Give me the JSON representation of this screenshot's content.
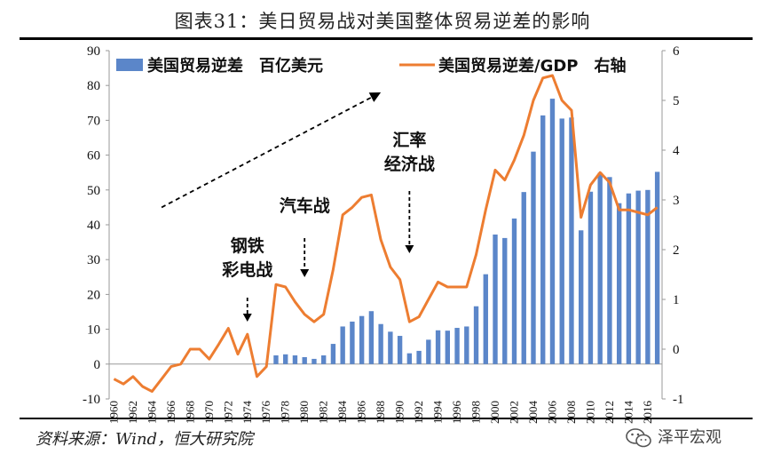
{
  "title": "图表31：美日贸易战对美国整体贸易逆差的影响",
  "source": "资料来源：Wind，恒大研究院",
  "watermark": "泽平宏观",
  "chart_data": {
    "type": "bar+line",
    "years": [
      1960,
      1961,
      1962,
      1963,
      1964,
      1965,
      1966,
      1967,
      1968,
      1969,
      1970,
      1971,
      1972,
      1973,
      1974,
      1975,
      1976,
      1977,
      1978,
      1979,
      1980,
      1981,
      1982,
      1983,
      1984,
      1985,
      1986,
      1987,
      1988,
      1989,
      1990,
      1991,
      1992,
      1993,
      1994,
      1995,
      1996,
      1997,
      1998,
      1999,
      2000,
      2001,
      2002,
      2003,
      2004,
      2005,
      2006,
      2007,
      2008,
      2009,
      2010,
      2011,
      2012,
      2013,
      2014,
      2015,
      2016,
      2017
    ],
    "x_tick_labels": [
      "1960",
      "1962",
      "1964",
      "1966",
      "1968",
      "1970",
      "1972",
      "1974",
      "1976",
      "1978",
      "1980",
      "1982",
      "1984",
      "1986",
      "1988",
      "1990",
      "1992",
      "1994",
      "1996",
      "1998",
      "2000",
      "2002",
      "2004",
      "2006",
      "2008",
      "2010",
      "2012",
      "2014",
      "2016"
    ],
    "series": [
      {
        "name": "美国贸易逆差　百亿美元",
        "type": "bar",
        "axis": "left",
        "color": "#5b86c9",
        "values": [
          0,
          0,
          0,
          0,
          0,
          0,
          0,
          0,
          0,
          0,
          0,
          0,
          0,
          0,
          0,
          -0.2,
          0,
          2.5,
          2.8,
          2.5,
          2.0,
          1.5,
          2.5,
          5.8,
          10.8,
          12.2,
          13.8,
          15.2,
          11.5,
          9.3,
          8.1,
          3.1,
          3.8,
          7.0,
          9.7,
          9.6,
          10.4,
          10.8,
          16.6,
          25.8,
          37.2,
          36.2,
          41.8,
          49.4,
          61.0,
          71.4,
          76.2,
          70.5,
          70.8,
          38.4,
          49.5,
          54.9,
          53.7,
          46.2,
          49.0,
          49.8,
          50.0,
          55.2
        ]
      },
      {
        "name": "美国贸易逆差/GDP　右轴",
        "type": "line",
        "axis": "right",
        "color": "#ed7d31",
        "values": [
          -0.6,
          -0.7,
          -0.55,
          -0.75,
          -0.85,
          -0.6,
          -0.35,
          -0.3,
          0.0,
          0.0,
          -0.2,
          0.1,
          0.42,
          -0.1,
          0.3,
          -0.55,
          -0.35,
          1.3,
          1.25,
          0.95,
          0.7,
          0.55,
          0.7,
          1.6,
          2.7,
          2.85,
          3.05,
          3.1,
          2.2,
          1.65,
          1.4,
          0.55,
          0.65,
          1.0,
          1.35,
          1.25,
          1.25,
          1.25,
          1.9,
          2.8,
          3.6,
          3.4,
          3.8,
          4.3,
          5.0,
          5.45,
          5.5,
          5.0,
          4.8,
          2.65,
          3.3,
          3.55,
          3.35,
          2.8,
          2.8,
          2.75,
          2.7,
          2.85
        ]
      }
    ],
    "y_left": {
      "min": -10,
      "max": 90,
      "ticks": [
        -10,
        0,
        10,
        20,
        30,
        40,
        50,
        60,
        70,
        80,
        90
      ]
    },
    "y_right": {
      "min": -1,
      "max": 6,
      "ticks": [
        -1,
        0,
        1,
        2,
        3,
        4,
        5,
        6
      ]
    },
    "annotations": [
      {
        "lines": [
          "钢铁",
          "彩电战"
        ],
        "year": 1974
      },
      {
        "lines": [
          "汽车战"
        ],
        "year": 1980
      },
      {
        "lines": [
          "汇率",
          "经济战"
        ],
        "year": 1991
      }
    ],
    "trend_arrow": {
      "from_year": 1965,
      "from_left_value": 45,
      "to_year": 1988,
      "to_left_value": 78
    },
    "legend_placement": "top"
  }
}
